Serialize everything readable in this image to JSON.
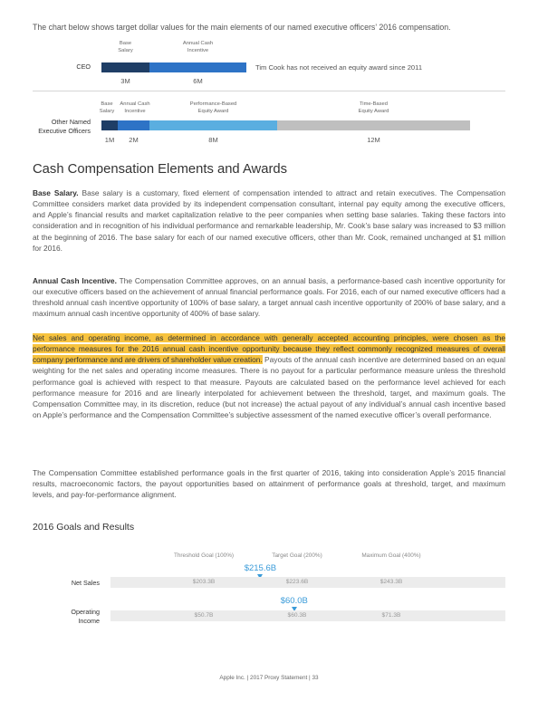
{
  "intro": "The chart below shows target dollar values for the main elements of our named executive officers’ 2016 compensation.",
  "comp_chart": {
    "ceo": {
      "label": "CEO",
      "seg_labels": [
        "Base\nSalary",
        "Annual Cash\nIncentive"
      ],
      "values": [
        "3M",
        "6M"
      ],
      "note": "Tim Cook has not received an equity award since 2011"
    },
    "neo": {
      "label": "Other Named\nExecutive Officers",
      "seg_labels": [
        "Base\nSalary",
        "Annual Cash\nIncentive",
        "Performance-Based\nEquity Award",
        "Time-Based\nEquity Award"
      ],
      "values": [
        "1M",
        "2M",
        "8M",
        "12M"
      ]
    },
    "colors": {
      "base": "#1f3e66",
      "cash": "#2e73c6",
      "perf": "#5aaee0",
      "time": "#bfbfbf"
    }
  },
  "section_title": "Cash Compensation Elements and Awards",
  "base_salary": {
    "heading": "Base Salary.",
    "text": "Base salary is a customary, fixed element of compensation intended to attract and retain executives. The Compensation Committee considers market data provided by its independent compensation consultant, internal pay equity among the executive officers, and Apple’s financial results and market capitalization relative to the peer companies when setting base salaries. Taking these factors into consideration and in recognition of his individual performance and remarkable leadership, Mr. Cook’s base salary was increased to $3 million at the beginning of 2016. The base salary for each of our named executive officers, other than Mr. Cook, remained unchanged at $1 million for 2016."
  },
  "annual_cash": {
    "heading": "Annual Cash Incentive.",
    "text": "The Compensation Committee approves, on an annual basis, a performance-based cash incentive opportunity for our executive officers based on the achievement of annual financial performance goals. For 2016, each of our named executive officers had a threshold annual cash incentive opportunity of 100% of base salary, a target annual cash incentive opportunity of 200% of base salary, and a maximum annual cash incentive opportunity of 400% of base salary."
  },
  "measures": {
    "highlighted": "Net sales and operating income, as determined in accordance with generally accepted accounting principles, were chosen as the performance measures for the 2016 annual cash incentive opportunity because they reflect commonly recognized measures of overall company performance and are drivers of shareholder value creation.",
    "text": " Payouts of the annual cash incentive are determined based on an equal weighting for the net sales and operating income measures. There is no payout for a particular performance measure unless the threshold performance goal is achieved with respect to that measure. Payouts are calculated based on the performance level achieved for each performance measure for 2016 and are linearly interpolated for achievement between the threshold, target, and maximum goals. The Compensation Committee may, in its discretion, reduce (but not increase) the actual payout of any individual’s annual cash incentive based on Apple’s performance and the Compensation Committee’s subjective assessment of the named executive officer’s overall performance."
  },
  "goals_para": "The Compensation Committee established performance goals in the first quarter of 2016, taking into consideration Apple’s 2015 financial results, macroeconomic factors, the payout opportunities based on attainment of performance goals at threshold, target, and maximum levels, and pay-for-performance alignment.",
  "goals": {
    "title": "2016 Goals and Results",
    "columns": [
      "Threshold Goal (100%)",
      "Target Goal (200%)",
      "Maximum Goal (400%)"
    ],
    "rows": [
      {
        "label": "Net Sales",
        "values": [
          "$203.3B",
          "$223.6B",
          "$243.3B"
        ],
        "result": "$215.6B",
        "result_value": 215.6,
        "threshold": 203.3,
        "target": 223.6
      },
      {
        "label": "Operating\nIncome",
        "values": [
          "$50.7B",
          "$60.3B",
          "$71.3B"
        ],
        "result": "$60.0B",
        "result_value": 60.0,
        "threshold": 50.7,
        "target": 60.3
      }
    ],
    "accent": "#3a9bd9"
  },
  "footer": "Apple Inc. | 2017 Proxy Statement | 33"
}
